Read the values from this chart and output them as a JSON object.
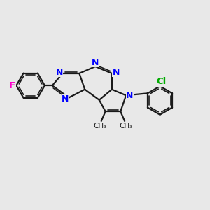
{
  "background_color": "#e8e8e8",
  "bond_color": "#1a1a1a",
  "n_color": "#0000ff",
  "f_color": "#ff00cc",
  "cl_color": "#00aa00",
  "figsize": [
    3.0,
    3.0
  ],
  "dpi": 100,
  "xlim": [
    -4.8,
    4.2
  ],
  "ylim": [
    -2.2,
    3.2
  ]
}
